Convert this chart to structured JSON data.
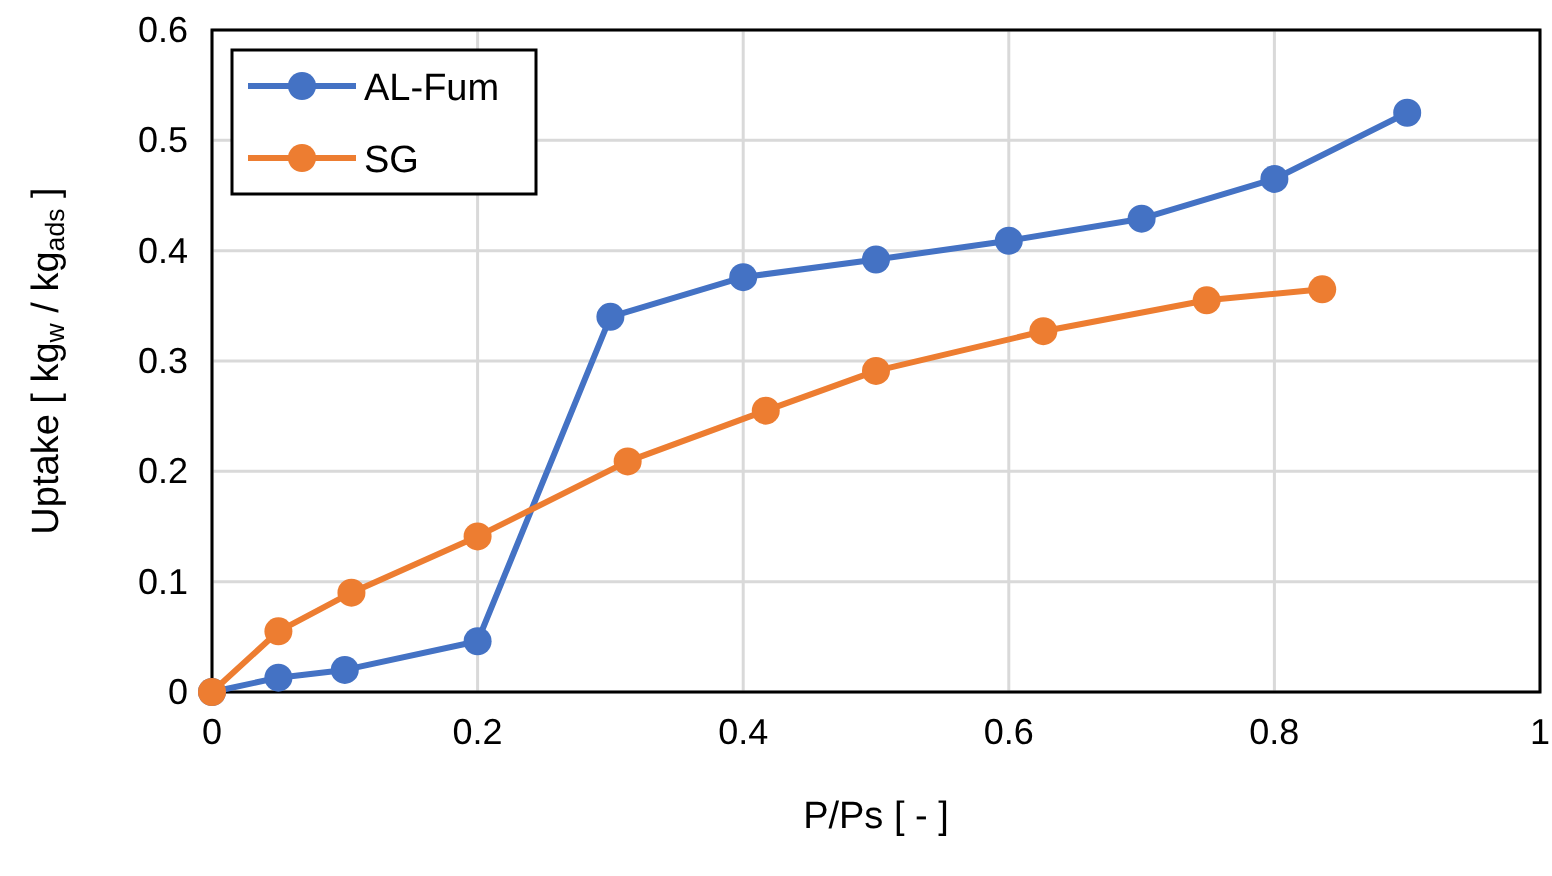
{
  "chart_data": {
    "type": "line",
    "xlabel": "P/Ps [ - ]",
    "ylabel": "Uptake [ kg$_{w}$ / kg$_{ads}$ ]",
    "xlim": [
      0,
      1
    ],
    "xticks": [
      0,
      0.2,
      0.4,
      0.6,
      0.8,
      1
    ],
    "ylim": [
      0,
      0.6
    ],
    "yticks": [
      0,
      0.1,
      0.2,
      0.3,
      0.4,
      0.5,
      0.6
    ],
    "grid": true,
    "legend": "top left",
    "marker": "circle",
    "line_style": "solid",
    "series": [
      {
        "name": "AL-Fum",
        "color": "#4472c4",
        "x": [
          0,
          0.05,
          0.1,
          0.2,
          0.3,
          0.4,
          0.5,
          0.6,
          0.7,
          0.8,
          0.9
        ],
        "values": [
          0,
          0.013,
          0.02,
          0.046,
          0.34,
          0.376,
          0.392,
          0.409,
          0.429,
          0.465,
          0.525
        ]
      },
      {
        "name": "SG",
        "color": "#ed7d31",
        "x": [
          0,
          0.05,
          0.105,
          0.2,
          0.313,
          0.417,
          0.5,
          0.626,
          0.749,
          0.836
        ],
        "values": [
          0,
          0.055,
          0.09,
          0.141,
          0.209,
          0.255,
          0.291,
          0.327,
          0.355,
          0.365
        ]
      }
    ]
  }
}
